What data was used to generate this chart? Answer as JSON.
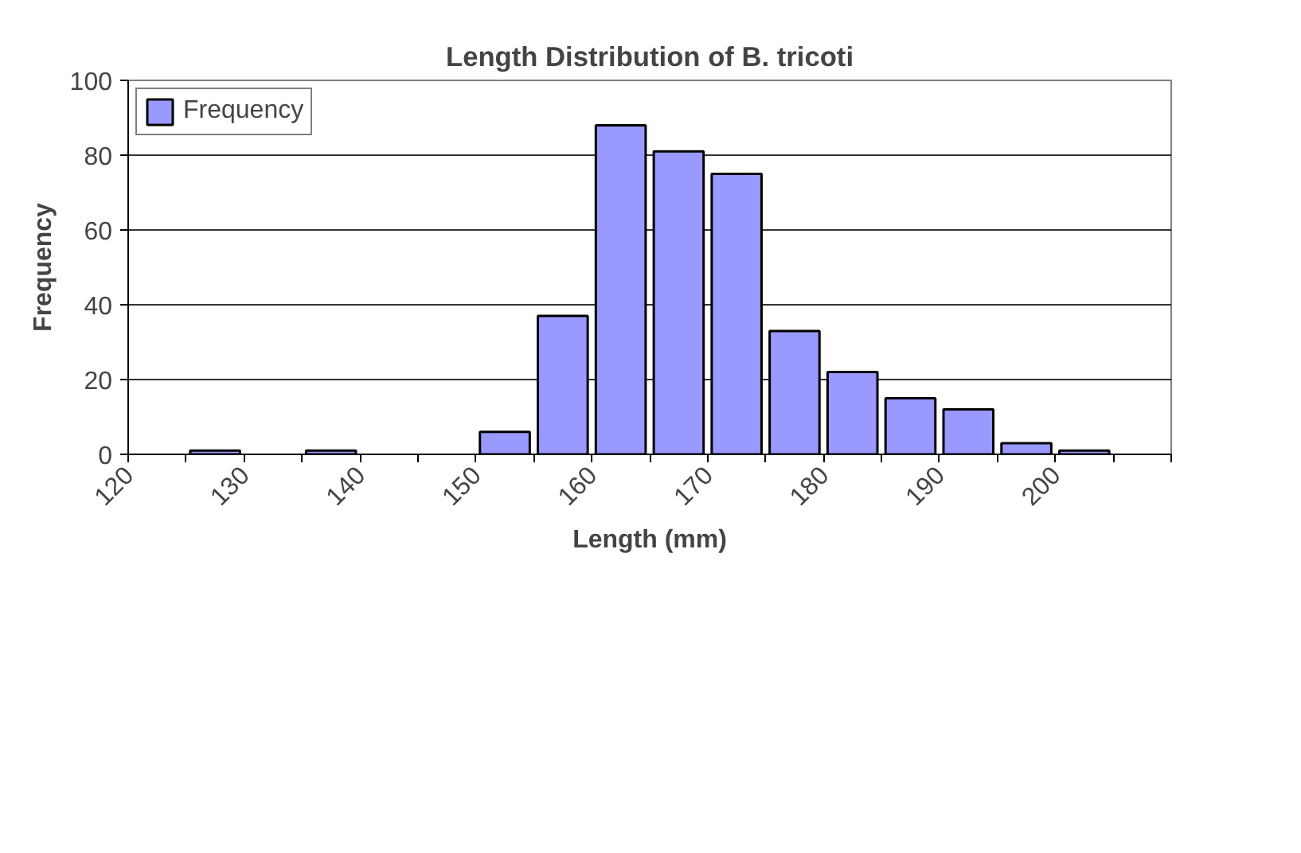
{
  "chart_data": {
    "type": "histogram",
    "title": "Length Distribution of B. tricoti",
    "xlabel": "Length (mm)",
    "ylabel": "Frequency",
    "bins": [
      120,
      125,
      130,
      135,
      140,
      145,
      150,
      155,
      160,
      165,
      170,
      175,
      180,
      185,
      190,
      195,
      200,
      205,
      210
    ],
    "series": [
      {
        "name": "Frequency",
        "color": "#9999ff",
        "values": [
          0,
          1,
          0,
          1,
          0,
          0,
          6,
          37,
          88,
          81,
          75,
          33,
          22,
          15,
          12,
          3,
          1,
          0
        ]
      }
    ],
    "xlim": [
      120,
      210
    ],
    "xticks": [
      120,
      {
        "value": 125,
        "label": null
      },
      130,
      {
        "value": 135,
        "label": null
      },
      140,
      {
        "value": 145,
        "label": null
      },
      150,
      {
        "value": 155,
        "label": null
      },
      160,
      {
        "value": 165,
        "label": null
      },
      170,
      {
        "value": 175,
        "label": null
      },
      180,
      {
        "value": 185,
        "label": null
      },
      190,
      {
        "value": 195,
        "label": null
      },
      200,
      {
        "value": 205,
        "label": null
      },
      {
        "value": 210,
        "label": null
      }
    ],
    "ylim": [
      0,
      100
    ],
    "yticks": [
      0,
      20,
      40,
      60,
      80,
      100
    ],
    "grid": "y",
    "legend": "top left"
  }
}
